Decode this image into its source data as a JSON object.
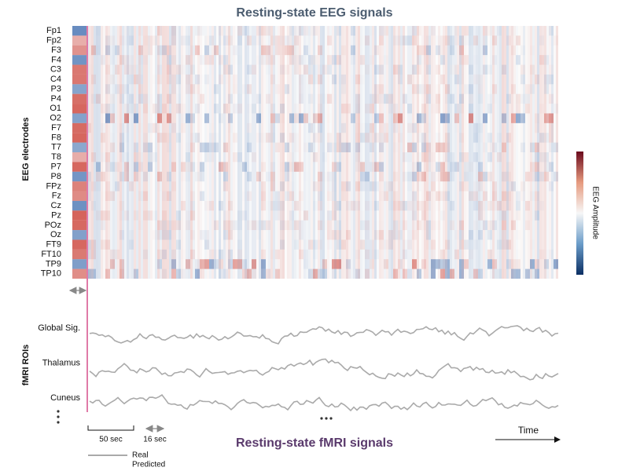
{
  "title": "Resting-state EEG signals",
  "eeg": {
    "y_axis_label": "EEG electrodes",
    "electrodes": [
      "Fp1",
      "Fp2",
      "F3",
      "F4",
      "C3",
      "C4",
      "P3",
      "P4",
      "O1",
      "O2",
      "F7",
      "F8",
      "T7",
      "T8",
      "P7",
      "P8",
      "FPz",
      "Fz",
      "Cz",
      "Pz",
      "POz",
      "Oz",
      "FT9",
      "FT10",
      "TP9",
      "TP10"
    ],
    "colorbar_label": "EEG Amplitude"
  },
  "fmri": {
    "y_axis_label": "fMRI ROIs",
    "rois": [
      "Global Sig.",
      "Thalamus",
      "Cuneus"
    ],
    "title": "Resting-state fMRI signals"
  },
  "scale": {
    "bar": "50 sec",
    "lag": "16 sec"
  },
  "time_label": "Time",
  "legend": {
    "real": "Real",
    "predicted": "Predicted"
  }
}
